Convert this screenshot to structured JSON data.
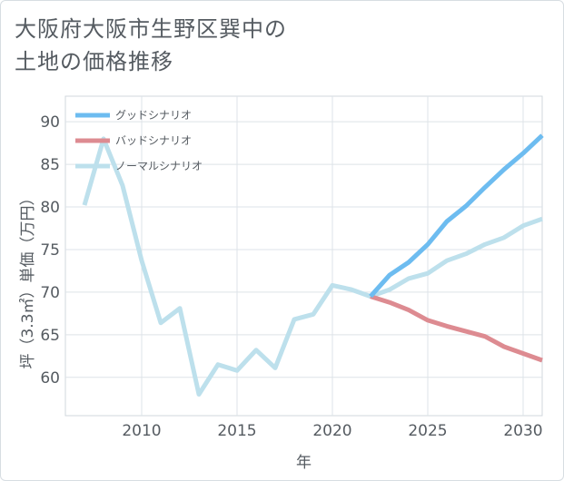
{
  "title": {
    "line1": "大阪府大阪市生野区巽中の",
    "line2": "土地の価格推移"
  },
  "chart_data": {
    "type": "line",
    "title": "大阪府大阪市生野区巽中の土地の価格推移",
    "xlabel": "年",
    "ylabel": "坪（3.3㎡）単価（万円）",
    "xlim": [
      2006,
      2031
    ],
    "ylim": [
      55.5,
      93
    ],
    "xticks": [
      2010,
      2015,
      2020,
      2025,
      2030
    ],
    "yticks": [
      60,
      65,
      70,
      75,
      80,
      85,
      90
    ],
    "grid": true,
    "legend_position": "top-left",
    "series": [
      {
        "name": "グッドシナリオ",
        "color": "#6dbcf0",
        "x": [
          2022,
          2023,
          2024,
          2025,
          2026,
          2027,
          2028,
          2029,
          2030,
          2031
        ],
        "values": [
          69.5,
          72.0,
          73.5,
          75.6,
          78.3,
          80.1,
          82.3,
          84.4,
          86.3,
          88.4
        ]
      },
      {
        "name": "バッドシナリオ",
        "color": "#dd8b91",
        "x": [
          2022,
          2023,
          2024,
          2025,
          2026,
          2027,
          2028,
          2029,
          2030,
          2031
        ],
        "values": [
          69.5,
          68.8,
          67.9,
          66.7,
          66.0,
          65.4,
          64.8,
          63.6,
          62.8,
          62.0
        ]
      },
      {
        "name": "ノーマルシナリオ",
        "color": "#bde0ec",
        "x": [
          2007,
          2008,
          2009,
          2010,
          2011,
          2012,
          2013,
          2014,
          2015,
          2016,
          2017,
          2018,
          2019,
          2020,
          2021,
          2022,
          2023,
          2024,
          2025,
          2026,
          2027,
          2028,
          2029,
          2030,
          2031
        ],
        "values": [
          80.2,
          88.0,
          82.5,
          73.7,
          66.4,
          68.1,
          58.0,
          61.5,
          60.8,
          63.2,
          61.1,
          66.8,
          67.4,
          70.8,
          70.3,
          69.5,
          70.3,
          71.6,
          72.2,
          73.7,
          74.5,
          75.6,
          76.4,
          77.8,
          78.6
        ]
      }
    ]
  }
}
